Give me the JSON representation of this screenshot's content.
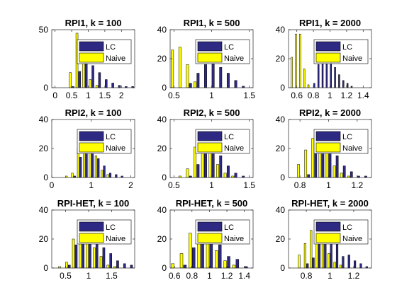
{
  "colors": {
    "lc": "#2e2a83",
    "naive": "#ffff00",
    "edge": "#000000"
  },
  "chart_data": [
    {
      "type": "bar",
      "title": "RPI1, k = 100",
      "ylim": [
        0,
        50
      ],
      "yticks": [
        0,
        50
      ],
      "xlim": [
        -0.1,
        2.4
      ],
      "xticks": [
        0,
        0.5,
        1,
        1.5,
        2
      ],
      "xtick_labels": [
        "0",
        "0.5",
        "1",
        "1.5",
        "2"
      ],
      "legend": {
        "placement": "top-right",
        "entries": [
          "LC",
          "Naive"
        ]
      },
      "x": [
        0.1,
        0.3,
        0.5,
        0.7,
        0.9,
        1.1,
        1.3,
        1.5,
        1.7,
        1.9,
        2.1,
        2.3
      ],
      "series": [
        {
          "name": "LC",
          "values": [
            0,
            0,
            1,
            14,
            23,
            19,
            13,
            7,
            4,
            2,
            1,
            1
          ]
        },
        {
          "name": "Naive",
          "values": [
            0,
            0,
            13,
            47,
            27,
            7,
            2,
            0,
            0,
            0,
            0,
            0
          ]
        }
      ]
    },
    {
      "type": "bar",
      "title": "RPI1, k = 500",
      "ylim": [
        0,
        40
      ],
      "yticks": [
        0,
        20,
        40
      ],
      "xlim": [
        0.45,
        1.55
      ],
      "xticks": [
        0.5,
        1,
        1.5
      ],
      "xtick_labels": [
        "0.5",
        "1",
        "1.5"
      ],
      "legend": {
        "placement": "top-right",
        "entries": [
          "LC",
          "Naive"
        ]
      },
      "x": [
        0.5,
        0.6,
        0.7,
        0.8,
        0.9,
        1.0,
        1.1,
        1.2,
        1.3,
        1.4,
        1.5
      ],
      "series": [
        {
          "name": "LC",
          "values": [
            0,
            0,
            3,
            10,
            16,
            17,
            14,
            10,
            5,
            1,
            0
          ]
        },
        {
          "name": "Naive",
          "values": [
            26,
            28,
            16,
            4,
            0,
            0,
            0,
            0,
            0,
            0,
            0
          ]
        }
      ]
    },
    {
      "type": "bar",
      "title": "RPI1, k = 2000",
      "ylim": [
        0,
        40
      ],
      "yticks": [
        0,
        20,
        40
      ],
      "xlim": [
        0.5,
        1.5
      ],
      "xticks": [
        0.6,
        0.8,
        1,
        1.2,
        1.4
      ],
      "xtick_labels": [
        "0.6",
        "0.8",
        "1",
        "1.2",
        "1.4"
      ],
      "legend": {
        "placement": "top-right",
        "entries": [
          "LC",
          "Naive"
        ]
      },
      "x": [
        0.55,
        0.6,
        0.65,
        0.7,
        0.75,
        0.8,
        0.85,
        0.9,
        0.95,
        1.0,
        1.05,
        1.1,
        1.15,
        1.2,
        1.25,
        1.3
      ],
      "series": [
        {
          "name": "LC",
          "values": [
            0,
            0,
            0,
            0,
            0,
            3,
            16,
            21,
            22,
            19,
            14,
            9,
            5,
            3,
            1,
            0
          ]
        },
        {
          "name": "Naive",
          "values": [
            21,
            37,
            37,
            13,
            2,
            0,
            0,
            0,
            0,
            0,
            0,
            0,
            0,
            0,
            0,
            0
          ]
        }
      ]
    },
    {
      "type": "bar",
      "title": "RPI2, k = 100",
      "ylim": [
        0,
        40
      ],
      "yticks": [
        0,
        20,
        40
      ],
      "xlim": [
        0,
        2.1
      ],
      "xticks": [
        0,
        1,
        2
      ],
      "xtick_labels": [
        "0",
        "1",
        "2"
      ],
      "legend": {
        "placement": "top-right",
        "entries": [
          "LC",
          "Naive"
        ]
      },
      "x": [
        0.4,
        0.55,
        0.7,
        0.85,
        1.0,
        1.15,
        1.3,
        1.45,
        1.6,
        1.75,
        1.9
      ],
      "series": [
        {
          "name": "LC",
          "values": [
            0,
            1,
            14,
            31,
            26,
            13,
            8,
            3,
            2,
            1,
            0
          ]
        },
        {
          "name": "Naive",
          "values": [
            1,
            3,
            20,
            28,
            21,
            15,
            5,
            2,
            0,
            0,
            0
          ]
        }
      ]
    },
    {
      "type": "bar",
      "title": "RPI2, k = 500",
      "ylim": [
        0,
        40
      ],
      "yticks": [
        0,
        20,
        40
      ],
      "xlim": [
        0.45,
        1.55
      ],
      "xticks": [
        0.5,
        1,
        1.5
      ],
      "xtick_labels": [
        "0.5",
        "1",
        "1.5"
      ],
      "legend": {
        "placement": "top-right",
        "entries": [
          "LC",
          "Naive"
        ]
      },
      "x": [
        0.6,
        0.7,
        0.8,
        0.9,
        1.0,
        1.1,
        1.2,
        1.3,
        1.4,
        1.5
      ],
      "series": [
        {
          "name": "LC",
          "values": [
            0,
            1,
            9,
            27,
            30,
            15,
            8,
            3,
            1,
            0
          ]
        },
        {
          "name": "Naive",
          "values": [
            1,
            6,
            21,
            33,
            26,
            9,
            3,
            1,
            0,
            0
          ]
        }
      ]
    },
    {
      "type": "bar",
      "title": "RPI2, k = 2000",
      "ylim": [
        0,
        40
      ],
      "yticks": [
        0,
        20,
        40
      ],
      "xlim": [
        0.72,
        1.3
      ],
      "xticks": [
        0.8,
        1,
        1.2
      ],
      "xtick_labels": [
        "0.8",
        "1",
        "1.2"
      ],
      "legend": {
        "placement": "top-right",
        "entries": [
          "LC",
          "Naive"
        ]
      },
      "x": [
        0.8,
        0.85,
        0.9,
        0.95,
        1.0,
        1.05,
        1.1,
        1.15,
        1.2,
        1.25
      ],
      "series": [
        {
          "name": "LC",
          "values": [
            0,
            2,
            17,
            26,
            27,
            15,
            8,
            4,
            1,
            1
          ]
        },
        {
          "name": "Naive",
          "values": [
            9,
            19,
            27,
            23,
            18,
            8,
            3,
            1,
            0,
            0
          ]
        }
      ]
    },
    {
      "type": "bar",
      "title": "RPI-HET, k = 100",
      "ylim": [
        0,
        40
      ],
      "yticks": [
        0,
        20,
        40
      ],
      "xlim": [
        0.2,
        2.0
      ],
      "xticks": [
        0.5,
        1,
        1.5
      ],
      "xtick_labels": [
        "0.5",
        "1",
        "1.5"
      ],
      "legend": {
        "placement": "top-right",
        "entries": [
          "LC",
          "Naive"
        ]
      },
      "x": [
        0.4,
        0.55,
        0.7,
        0.85,
        1.0,
        1.15,
        1.3,
        1.45,
        1.6,
        1.75,
        1.9
      ],
      "series": [
        {
          "name": "LC",
          "values": [
            0,
            2,
            16,
            26,
            27,
            20,
            14,
            10,
            5,
            3,
            2
          ]
        },
        {
          "name": "Naive",
          "values": [
            1,
            4,
            20,
            29,
            25,
            14,
            8,
            2,
            1,
            0,
            0
          ]
        }
      ]
    },
    {
      "type": "bar",
      "title": "RPI-HET, k = 500",
      "ylim": [
        0,
        40
      ],
      "yticks": [
        0,
        20,
        40
      ],
      "xlim": [
        0.55,
        1.5
      ],
      "xticks": [
        0.6,
        0.8,
        1,
        1.2,
        1.4
      ],
      "xtick_labels": [
        "0.6",
        "0.8",
        "1",
        "1.2",
        "1.4"
      ],
      "legend": {
        "placement": "top-right",
        "entries": [
          "LC",
          "Naive"
        ]
      },
      "x": [
        0.6,
        0.7,
        0.8,
        0.9,
        1.0,
        1.1,
        1.2,
        1.3,
        1.4
      ],
      "series": [
        {
          "name": "LC",
          "values": [
            0,
            2,
            14,
            30,
            27,
            16,
            8,
            6,
            1
          ]
        },
        {
          "name": "Naive",
          "values": [
            3,
            10,
            24,
            31,
            20,
            12,
            5,
            2,
            0
          ]
        }
      ]
    },
    {
      "type": "bar",
      "title": "RPI-HET, k = 2000",
      "ylim": [
        0,
        40
      ],
      "yticks": [
        0,
        20,
        40
      ],
      "xlim": [
        0.65,
        1.35
      ],
      "xticks": [
        0.8,
        1,
        1.2
      ],
      "xtick_labels": [
        "0.8",
        "1",
        "1.2"
      ],
      "legend": {
        "placement": "top-right",
        "entries": [
          "LC",
          "Naive"
        ]
      },
      "x": [
        0.75,
        0.8,
        0.85,
        0.9,
        0.95,
        1.0,
        1.05,
        1.1,
        1.15,
        1.2,
        1.25,
        1.3
      ],
      "series": [
        {
          "name": "LC",
          "values": [
            0,
            3,
            7,
            22,
            27,
            25,
            19,
            8,
            9,
            5,
            3,
            1
          ]
        },
        {
          "name": "Naive",
          "values": [
            9,
            17,
            26,
            20,
            20,
            10,
            4,
            2,
            0,
            0,
            0,
            0
          ]
        }
      ]
    }
  ]
}
